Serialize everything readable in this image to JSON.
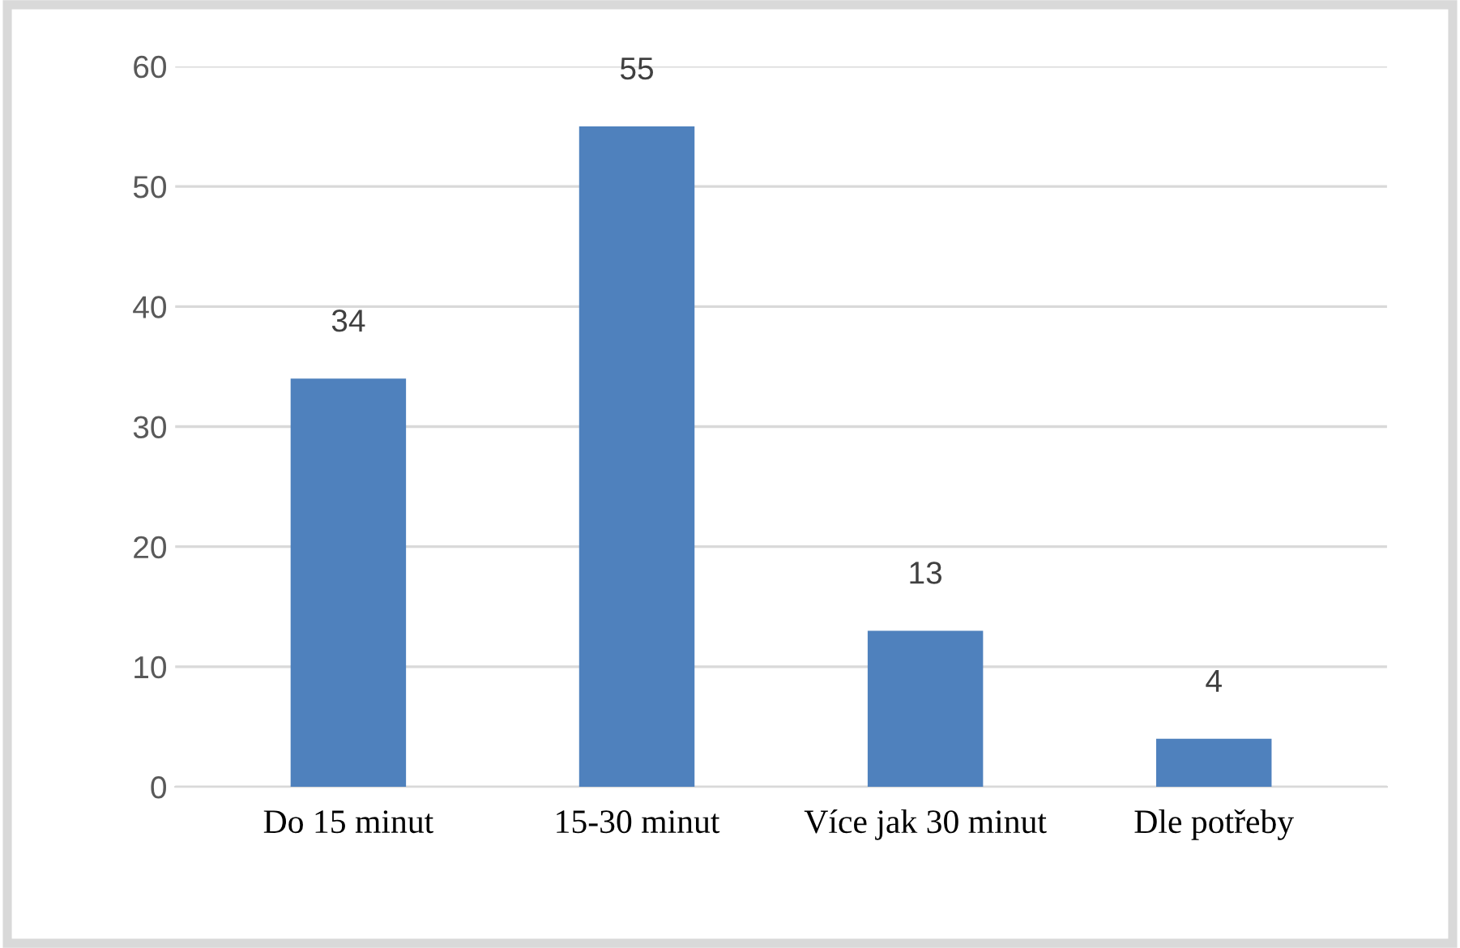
{
  "chart_data": {
    "type": "bar",
    "categories": [
      "Do 15 minut",
      "15-30 minut",
      "Více jak 30 minut",
      "Dle potřeby"
    ],
    "values": [
      34,
      55,
      13,
      4
    ],
    "color": "#4f81bd",
    "ylim": [
      0,
      60
    ],
    "yticks": [
      0,
      10,
      20,
      30,
      40,
      50,
      60
    ],
    "grid": "y",
    "data_labels": true
  }
}
